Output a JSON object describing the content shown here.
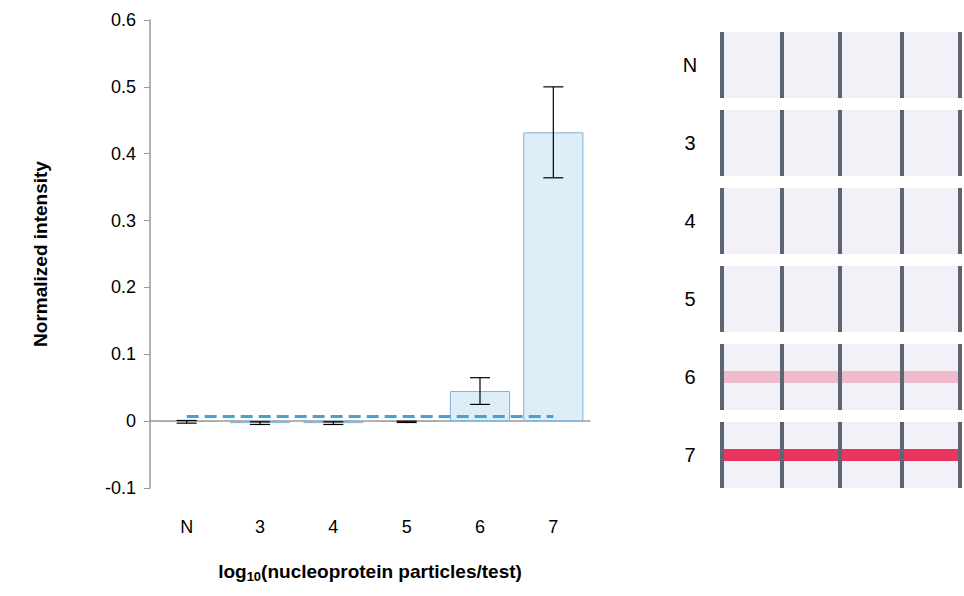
{
  "chart_data": {
    "type": "bar",
    "x_label": "log10(nucleoprotein particles/test)",
    "y_label": "Normalized intensity",
    "categories": [
      "N",
      "3",
      "4",
      "5",
      "6",
      "7"
    ],
    "values": [
      -0.001,
      -0.003,
      -0.003,
      -0.001,
      0.045,
      0.432
    ],
    "errors": [
      0.002,
      0.002,
      0.002,
      0.001,
      0.02,
      0.068
    ],
    "color": "#deeef8",
    "threshold": {
      "value": 0.008,
      "color": "#4a9fd5",
      "line_style": "dashed"
    },
    "ylim": [
      -0.1,
      0.6
    ],
    "yticks": [
      -0.1,
      0,
      0.1,
      0.2,
      0.3,
      0.4,
      0.5,
      0.6
    ],
    "grid": false
  }
}
